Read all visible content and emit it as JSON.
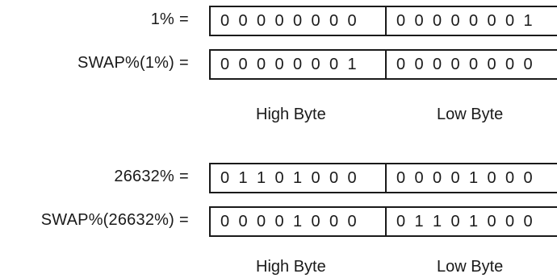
{
  "groups": [
    {
      "rows": [
        {
          "label": "1%",
          "high": [
            "0",
            "0",
            "0",
            "0",
            "0",
            "0",
            "0",
            "0"
          ],
          "low": [
            "0",
            "0",
            "0",
            "0",
            "0",
            "0",
            "0",
            "1"
          ]
        },
        {
          "label": "SWAP%(1%)",
          "high": [
            "0",
            "0",
            "0",
            "0",
            "0",
            "0",
            "0",
            "1"
          ],
          "low": [
            "0",
            "0",
            "0",
            "0",
            "0",
            "0",
            "0",
            "0"
          ]
        }
      ],
      "high_caption": "High Byte",
      "low_caption": "Low Byte"
    },
    {
      "rows": [
        {
          "label": "26632%",
          "high": [
            "0",
            "1",
            "1",
            "0",
            "1",
            "0",
            "0",
            "0"
          ],
          "low": [
            "0",
            "0",
            "0",
            "0",
            "1",
            "0",
            "0",
            "0"
          ]
        },
        {
          "label": "SWAP%(26632%)",
          "high": [
            "0",
            "0",
            "0",
            "0",
            "1",
            "0",
            "0",
            "0"
          ],
          "low": [
            "0",
            "1",
            "1",
            "0",
            "1",
            "0",
            "0",
            "0"
          ]
        }
      ],
      "high_caption": "High Byte",
      "low_caption": "Low Byte"
    }
  ],
  "equals_sign": "="
}
